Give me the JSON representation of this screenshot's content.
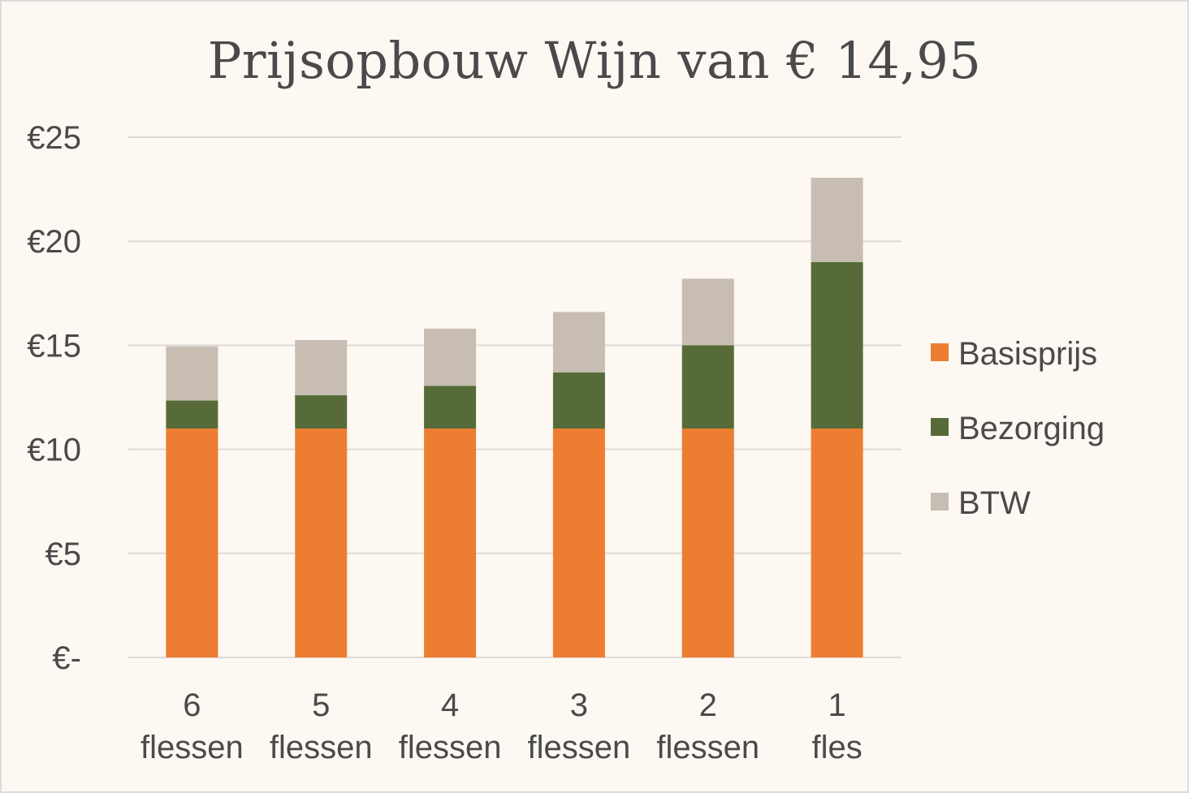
{
  "chart_data": {
    "type": "bar",
    "stacked": true,
    "title": "Prijsopbouw Wijn van € 14,95",
    "categories": [
      [
        "6",
        "flessen"
      ],
      [
        "5",
        "flessen"
      ],
      [
        "4",
        "flessen"
      ],
      [
        "3",
        "flessen"
      ],
      [
        "2",
        "flessen"
      ],
      [
        "1",
        "fles"
      ]
    ],
    "series": [
      {
        "name": "Basisprijs",
        "color": "#ed7d31",
        "values": [
          11.0,
          11.0,
          11.0,
          11.0,
          11.0,
          11.0
        ]
      },
      {
        "name": "Bezorging",
        "color": "#566b37",
        "values": [
          1.35,
          1.6,
          2.05,
          2.7,
          4.0,
          8.0
        ]
      },
      {
        "name": "BTW",
        "color": "#c7bdb2",
        "values": [
          2.6,
          2.65,
          2.75,
          2.9,
          3.2,
          4.05
        ]
      }
    ],
    "y_ticks": [
      {
        "value": 0,
        "label": "€-"
      },
      {
        "value": 5,
        "label": "€5"
      },
      {
        "value": 10,
        "label": "€10"
      },
      {
        "value": 15,
        "label": "€15"
      },
      {
        "value": 20,
        "label": "€20"
      },
      {
        "value": 25,
        "label": "€25"
      }
    ],
    "ylim": [
      0,
      25
    ],
    "grid": true,
    "legend_position": "right",
    "colors": {
      "background": "#fdf8f2",
      "grid": "#dedad5",
      "text": "#4a4a4a"
    }
  }
}
